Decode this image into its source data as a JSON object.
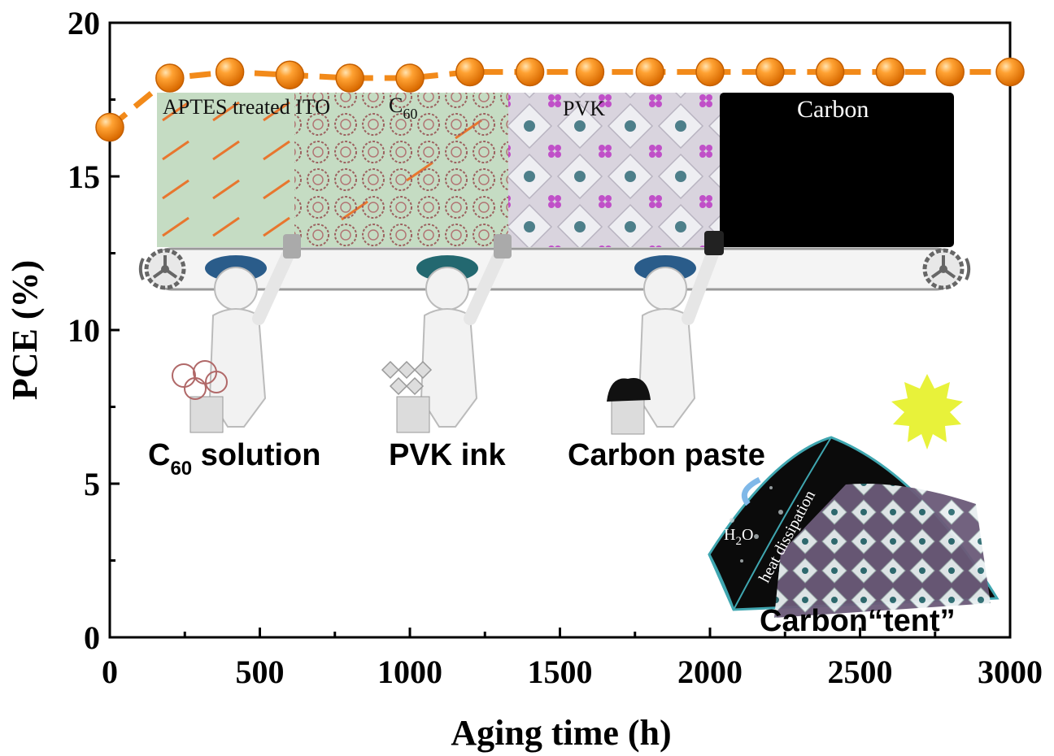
{
  "chart_data": {
    "type": "line",
    "title": "",
    "xlabel": "Aging time (h)",
    "ylabel": "PCE (%)",
    "xlim": [
      0,
      3000
    ],
    "ylim": [
      0,
      20
    ],
    "x_ticks": [
      0,
      500,
      1000,
      1500,
      2000,
      2500,
      3000
    ],
    "y_ticks": [
      0,
      5,
      10,
      15,
      20
    ],
    "grid": false,
    "legend": "none",
    "series": [
      {
        "color": "#f28a1a",
        "x": [
          0,
          200,
          400,
          600,
          800,
          1000,
          1200,
          1400,
          1600,
          1800,
          2000,
          2200,
          2400,
          2600,
          2800,
          3000
        ],
        "y": [
          16.6,
          18.2,
          18.4,
          18.3,
          18.2,
          18.2,
          18.4,
          18.4,
          18.4,
          18.4,
          18.4,
          18.4,
          18.4,
          18.4,
          18.4,
          18.4
        ]
      }
    ],
    "annotations": {
      "layer_aptes": "APTES treated ITO",
      "layer_c60": "C",
      "layer_c60_sub": "60",
      "layer_pvk": "PVK",
      "layer_carbon": "Carbon",
      "c60_solution_main": "C",
      "c60_solution_sub": "60",
      "c60_solution_rest": " solution",
      "pvk_ink": "PVK ink",
      "carbon_paste": "Carbon paste",
      "heat_dissipation": "heat dissipation",
      "h2o_main": "H",
      "h2o_sub": "2",
      "h2o_end": "O",
      "carbon_tent": "Carbon“tent”"
    }
  }
}
